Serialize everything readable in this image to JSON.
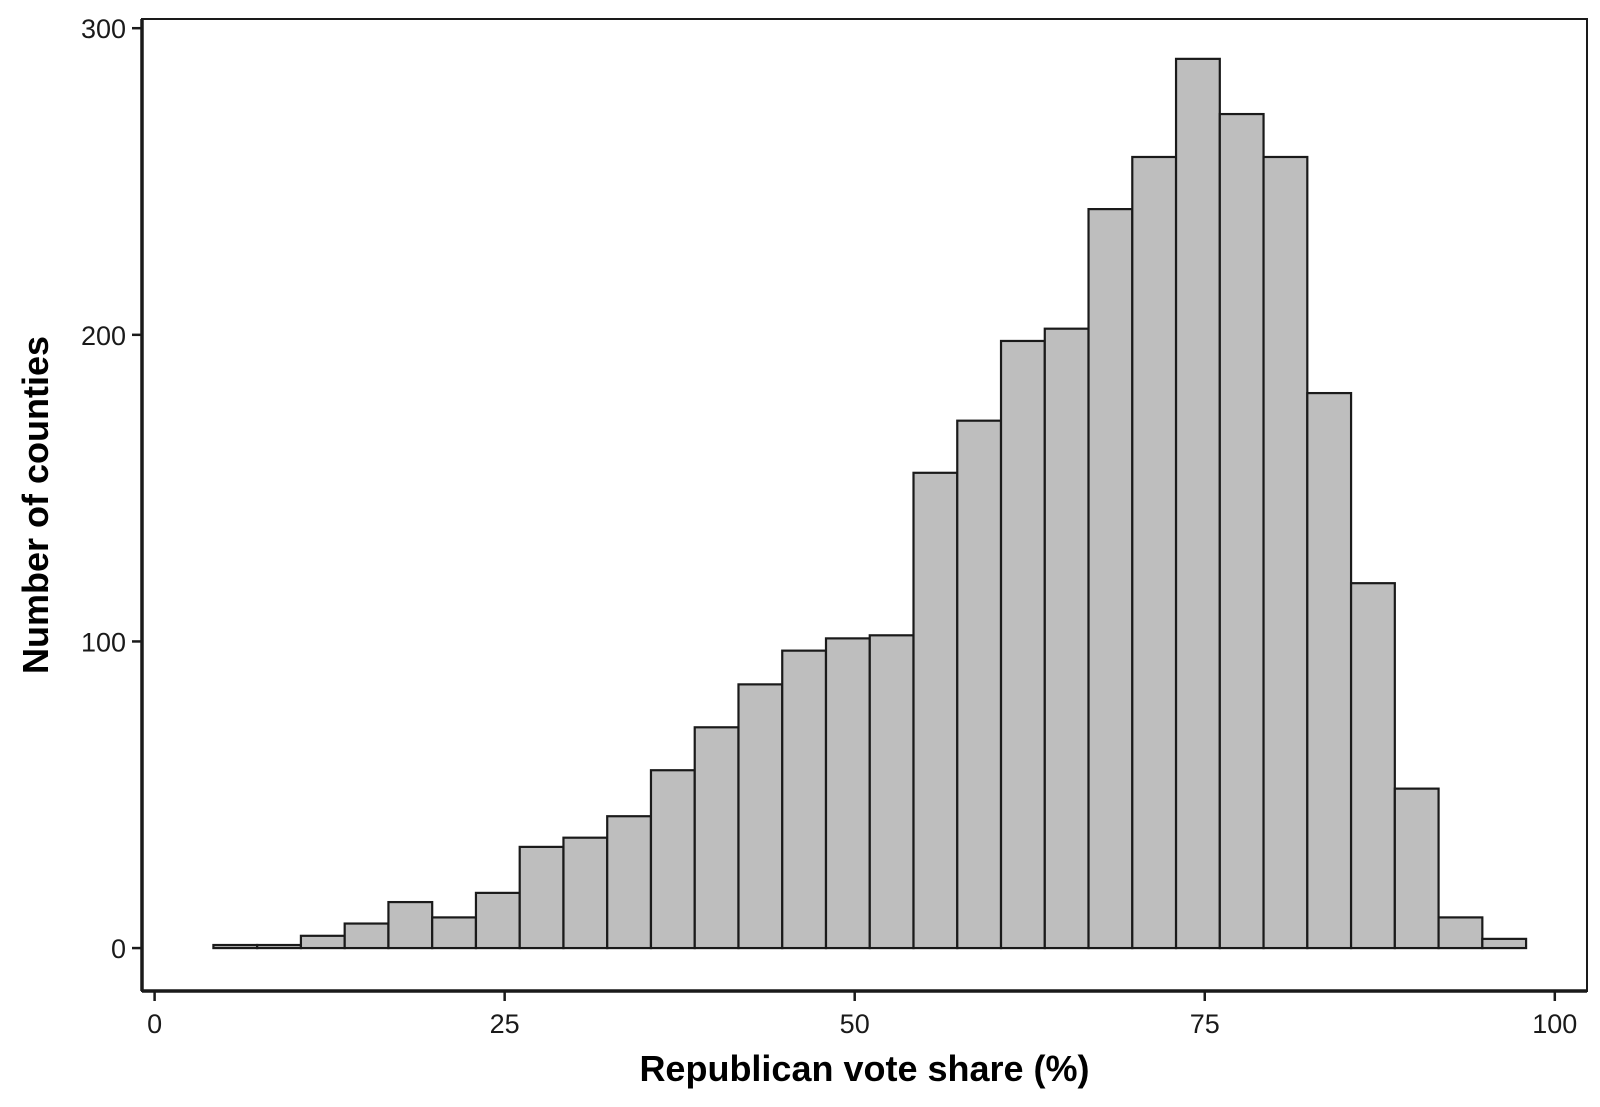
{
  "chart_data": {
    "type": "bar",
    "title": "",
    "xlabel": "Republican vote share (%)",
    "ylabel": "Number of counties",
    "xlim": [
      -0.9,
      102.3
    ],
    "ylim": [
      -14,
      303
    ],
    "bin_width": 3.125,
    "bin_starts": [
      4.2,
      7.325,
      10.45,
      13.575,
      16.7,
      19.825,
      22.95,
      26.075,
      29.2,
      32.325,
      35.45,
      38.575,
      41.7,
      44.825,
      47.95,
      51.075,
      54.2,
      57.325,
      60.45,
      63.575,
      66.7,
      69.825,
      72.95,
      76.075,
      79.2,
      82.325,
      85.45,
      88.575,
      91.7,
      94.825
    ],
    "values": [
      1,
      1,
      4,
      8,
      15,
      10,
      18,
      33,
      36,
      43,
      58,
      72,
      86,
      97,
      101,
      102,
      155,
      172,
      198,
      202,
      241,
      258,
      290,
      272,
      258,
      181,
      119,
      52,
      10,
      3
    ],
    "x_ticks": [
      0,
      25,
      50,
      75,
      100
    ],
    "x_tick_labels": [
      "0",
      "25",
      "50",
      "75",
      "100"
    ],
    "y_ticks": [
      0,
      100,
      200,
      300
    ],
    "y_tick_labels": [
      "0",
      "100",
      "200",
      "300"
    ],
    "grid": false,
    "legend": "none",
    "bar_fill": "#bebebe",
    "bar_stroke": "#1a1a1a"
  }
}
